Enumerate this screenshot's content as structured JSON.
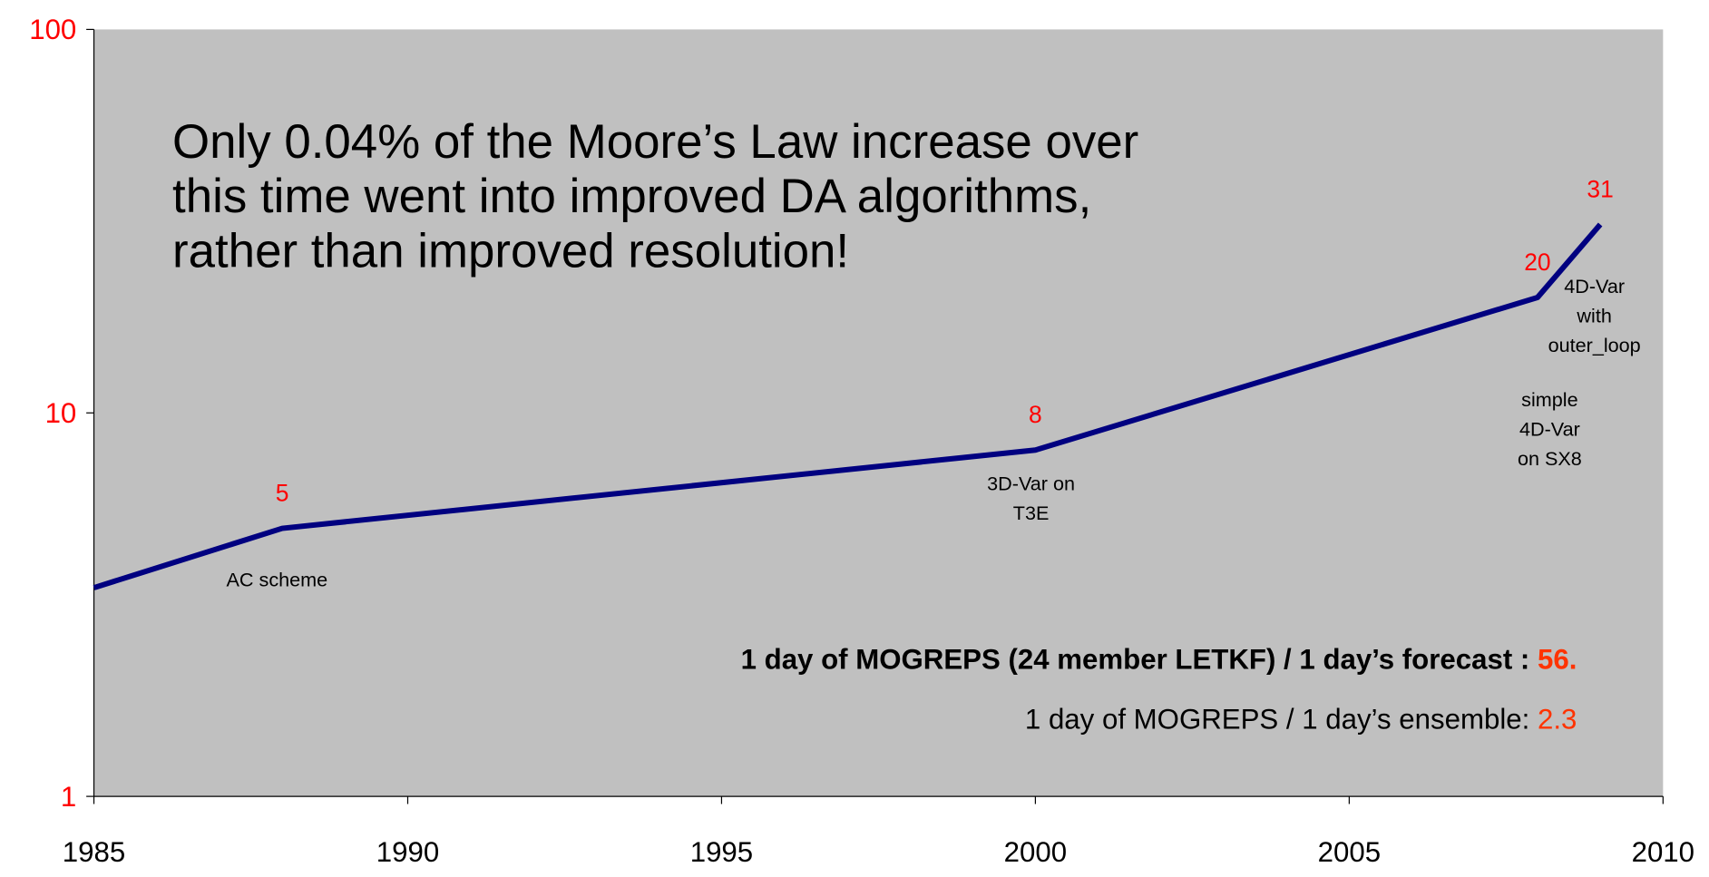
{
  "chart_data": {
    "type": "line",
    "x": [
      1985,
      1988,
      2000,
      2008,
      2009
    ],
    "series": [
      {
        "color": "#000080",
        "values": [
          3.5,
          5,
          8,
          20,
          31
        ],
        "value_labels": [
          null,
          "5",
          "8",
          "20",
          "31"
        ]
      }
    ],
    "xlim": [
      1985,
      2010
    ],
    "xticks": [
      1985,
      1990,
      1995,
      2000,
      2005,
      2010
    ],
    "ylim": [
      1,
      100
    ],
    "yticks": [
      1,
      10,
      100
    ],
    "log_y": true,
    "annotations": [
      [
        "AC scheme"
      ],
      [
        "3D-Var on",
        "T3E"
      ],
      [
        "simple",
        "4D-Var",
        "on SX8"
      ],
      [
        "4D-Var",
        "with",
        "outer_loop"
      ]
    ],
    "headline": [
      "Only 0.04% of the Moore’s Law increase over",
      "this time went into improved DA algorithms,",
      "rather than improved resolution!"
    ],
    "notes": [
      [
        "1 day of MOGREPS (24 member LETKF) / 1 day’s forecast : ",
        "56."
      ],
      [
        "1 day of MOGREPS / 1 day’s ensemble: ",
        "2.3"
      ]
    ]
  }
}
